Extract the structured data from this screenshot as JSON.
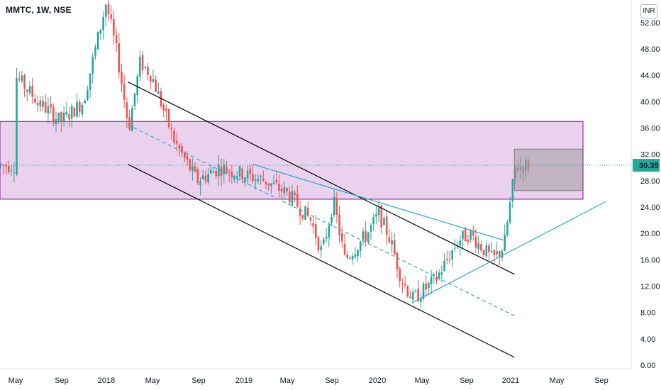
{
  "header": {
    "ticker_line": "MMTC, 1W, NSE"
  },
  "price_axis": {
    "unit": "INR",
    "last_price_label": "30.35",
    "last_price_color": "#26a69a"
  },
  "colors": {
    "up": "#26a69a",
    "down": "#ef5350",
    "zone_fill": "#e1bee7",
    "zone_border": "#9c27b0",
    "channel": "#000000",
    "trend": "#2fa4cf",
    "range_box": "#9e9ba0"
  },
  "chart_data": {
    "type": "candlestick",
    "ylim": [
      0,
      55
    ],
    "y_ticks": [
      "52.00",
      "48.00",
      "44.00",
      "40.00",
      "36.00",
      "32.00",
      "28.00",
      "24.00",
      "20.00",
      "16.00",
      "12.00",
      "8.00",
      "4.00",
      "0.00"
    ],
    "x_ticks": [
      "May",
      "Sep",
      "2018",
      "May",
      "Sep",
      "2019",
      "May",
      "Sep",
      "2020",
      "May",
      "Sep",
      "2021",
      "May",
      "Sep"
    ],
    "last_price": 30.35,
    "resistance_zone": [
      25.2,
      37.0
    ],
    "range_box": {
      "from": "2021-01",
      "to": "2021-07",
      "low": 26.5,
      "high": 32.8
    },
    "channel": {
      "upper": {
        "from": [
          "2018-03",
          43.0
        ],
        "to": [
          "2021-01",
          13.8
        ]
      },
      "lower": {
        "from": [
          "2018-03",
          30.5
        ],
        "to": [
          "2021-01",
          1.2
        ]
      },
      "mid": {
        "from": [
          "2018-03",
          36.5
        ],
        "to": [
          "2021-01",
          7.5
        ]
      }
    },
    "trendlines": [
      {
        "from": [
          "2019-02",
          30.5
        ],
        "to": [
          "2020-12",
          19.0
        ]
      },
      {
        "from": [
          "2020-04",
          9.5
        ],
        "to": [
          "2021-09",
          24.8
        ]
      }
    ],
    "approx_weekly_path": [
      [
        "2017-05",
        44
      ],
      [
        "2017-07",
        40
      ],
      [
        "2017-09",
        37
      ],
      [
        "2017-11",
        40
      ],
      [
        "2018-01",
        55
      ],
      [
        "2018-02",
        47
      ],
      [
        "2018-03",
        36
      ],
      [
        "2018-04",
        46
      ],
      [
        "2018-05",
        44
      ],
      [
        "2018-07",
        34
      ],
      [
        "2018-09",
        28
      ],
      [
        "2018-11",
        30
      ],
      [
        "2019-01",
        29
      ],
      [
        "2019-03",
        28
      ],
      [
        "2019-05",
        26
      ],
      [
        "2019-07",
        22
      ],
      [
        "2019-08",
        17
      ],
      [
        "2019-09",
        25
      ],
      [
        "2019-10",
        16
      ],
      [
        "2019-12",
        20
      ],
      [
        "2020-01",
        23
      ],
      [
        "2020-02",
        19
      ],
      [
        "2020-03",
        13
      ],
      [
        "2020-04",
        10
      ],
      [
        "2020-06",
        13
      ],
      [
        "2020-08",
        19
      ],
      [
        "2020-09",
        20
      ],
      [
        "2020-11",
        16
      ],
      [
        "2020-12",
        18
      ],
      [
        "2021-01",
        30
      ],
      [
        "2021-02",
        30.35
      ]
    ]
  }
}
